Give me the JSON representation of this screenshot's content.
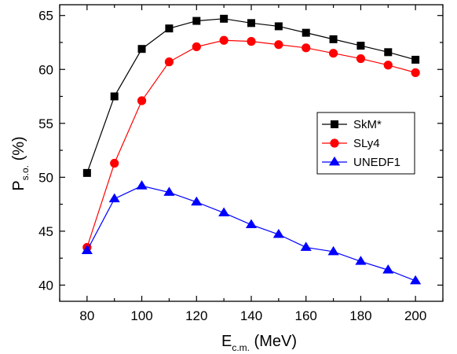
{
  "chart_data": {
    "type": "line",
    "x": [
      80,
      90,
      100,
      110,
      120,
      130,
      140,
      150,
      160,
      170,
      180,
      190,
      200
    ],
    "xlim": [
      70,
      210
    ],
    "ylim": [
      38.5,
      66
    ],
    "xticks": [
      80,
      100,
      120,
      140,
      160,
      180,
      200
    ],
    "yticks": [
      40,
      45,
      50,
      55,
      60,
      65
    ],
    "xlabel": {
      "main": "E",
      "sub": "c.m.",
      "unit": " (MeV)"
    },
    "ylabel": {
      "main": "P",
      "sub": "s.o.",
      "unit": " (%)"
    },
    "grid": false,
    "legend_position": "right-center",
    "series": [
      {
        "name": "SkM*",
        "color": "#000000",
        "marker": "square",
        "values": [
          50.4,
          57.5,
          61.9,
          63.8,
          64.5,
          64.7,
          64.3,
          64.0,
          63.4,
          62.8,
          62.2,
          61.6,
          60.9
        ]
      },
      {
        "name": "SLy4",
        "color": "#ff0000",
        "marker": "circle",
        "values": [
          43.5,
          51.3,
          57.1,
          60.7,
          62.1,
          62.7,
          62.6,
          62.3,
          62.0,
          61.5,
          61.0,
          60.4,
          59.7
        ]
      },
      {
        "name": "UNEDF1",
        "color": "#0000ff",
        "marker": "triangle",
        "values": [
          43.2,
          48.0,
          49.2,
          48.6,
          47.7,
          46.7,
          45.6,
          44.7,
          43.5,
          43.1,
          42.2,
          41.4,
          40.4
        ]
      }
    ]
  }
}
